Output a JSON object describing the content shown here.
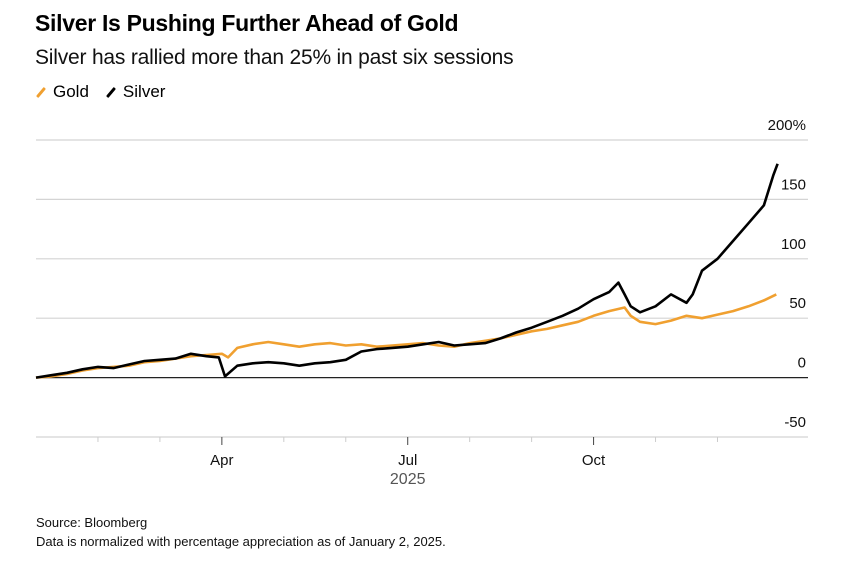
{
  "chart_data": {
    "type": "line",
    "title": "Silver Is Pushing Further Ahead of Gold",
    "subtitle": "Silver has rallied more than 25% in past six sessions",
    "xlabel": "2025",
    "ylabel": "",
    "ylim": [
      -50,
      200
    ],
    "y_ticks": [
      200,
      150,
      100,
      50,
      0,
      -50
    ],
    "y_tick_labels": [
      "200%",
      "150",
      "100",
      "50",
      "0",
      "-50"
    ],
    "x_ticks": [
      {
        "label": "Apr",
        "month": 3
      },
      {
        "label": "Jul",
        "month": 6
      },
      {
        "label": "Oct",
        "month": 9
      }
    ],
    "x_range_months": [
      0,
      12
    ],
    "grid": true,
    "legend_position": "top-left",
    "series": [
      {
        "name": "Gold",
        "color": "#f0a030",
        "x": [
          0,
          0.25,
          0.5,
          0.75,
          1.0,
          1.25,
          1.5,
          1.75,
          2.0,
          2.25,
          2.5,
          2.75,
          3.0,
          3.1,
          3.25,
          3.5,
          3.75,
          4.0,
          4.25,
          4.5,
          4.75,
          5.0,
          5.25,
          5.5,
          5.75,
          6.0,
          6.25,
          6.5,
          6.75,
          7.0,
          7.25,
          7.5,
          7.75,
          8.0,
          8.25,
          8.5,
          8.75,
          9.0,
          9.25,
          9.5,
          9.6,
          9.75,
          10.0,
          10.25,
          10.5,
          10.75,
          11.0,
          11.25,
          11.5,
          11.75,
          11.95
        ],
        "values": [
          0,
          1,
          3,
          6,
          8,
          9,
          10,
          13,
          14,
          16,
          18,
          19,
          20,
          17,
          25,
          28,
          30,
          28,
          26,
          28,
          29,
          27,
          28,
          26,
          27,
          28,
          29,
          27,
          26,
          29,
          31,
          33,
          36,
          39,
          41,
          44,
          47,
          52,
          56,
          59,
          52,
          47,
          45,
          48,
          52,
          50,
          53,
          56,
          60,
          65,
          70
        ]
      },
      {
        "name": "Silver",
        "color": "#000000",
        "x": [
          0,
          0.25,
          0.5,
          0.75,
          1.0,
          1.25,
          1.5,
          1.75,
          2.0,
          2.25,
          2.5,
          2.75,
          2.95,
          3.05,
          3.25,
          3.5,
          3.75,
          4.0,
          4.25,
          4.5,
          4.75,
          5.0,
          5.25,
          5.5,
          5.75,
          6.0,
          6.25,
          6.5,
          6.75,
          7.0,
          7.25,
          7.5,
          7.75,
          8.0,
          8.25,
          8.5,
          8.75,
          9.0,
          9.25,
          9.4,
          9.5,
          9.6,
          9.75,
          10.0,
          10.25,
          10.5,
          10.6,
          10.75,
          11.0,
          11.25,
          11.5,
          11.75,
          11.9,
          11.97
        ],
        "values": [
          0,
          2,
          4,
          7,
          9,
          8,
          11,
          14,
          15,
          16,
          20,
          18,
          17,
          1,
          10,
          12,
          13,
          12,
          10,
          12,
          13,
          15,
          22,
          24,
          25,
          26,
          28,
          30,
          27,
          28,
          29,
          33,
          38,
          42,
          47,
          52,
          58,
          66,
          72,
          80,
          70,
          60,
          55,
          60,
          70,
          63,
          70,
          90,
          100,
          115,
          130,
          145,
          170,
          180
        ]
      }
    ]
  },
  "source": "Source: Bloomberg",
  "note": "Data is normalized with percentage appreciation as of January 2, 2025."
}
